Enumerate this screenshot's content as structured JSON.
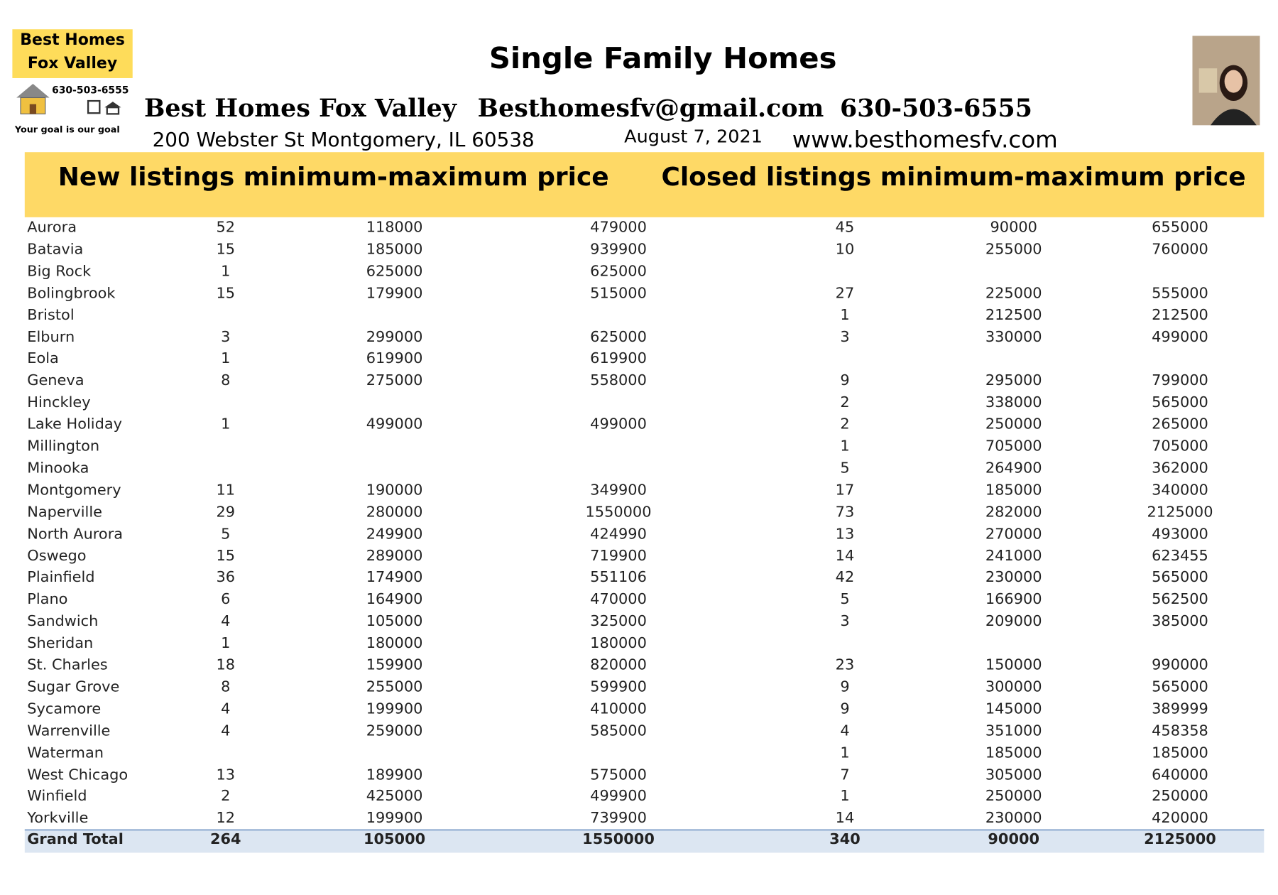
{
  "logo": {
    "line1": "Best Homes",
    "line2": "Fox Valley",
    "phone": "630-503-6555",
    "tagline": "Your goal is our goal"
  },
  "header": {
    "title": "Single Family Homes",
    "brand": "Best Homes Fox Valley",
    "email": "Besthomesfv@gmail.com",
    "phone": "630-503-6555",
    "address": "200 Webster St Montgomery, IL 60538",
    "date": "August 7, 2021",
    "website": "www.besthomesfv.com"
  },
  "table": {
    "headers": [
      "New listings minimum-maximum price",
      "Closed listings minimum-maximum price"
    ],
    "rows": [
      [
        "Aurora",
        52,
        118000,
        479000,
        45,
        90000,
        655000
      ],
      [
        "Batavia",
        15,
        185000,
        939900,
        10,
        255000,
        760000
      ],
      [
        "Big Rock",
        1,
        625000,
        625000,
        null,
        null,
        null
      ],
      [
        "Bolingbrook",
        15,
        179900,
        515000,
        27,
        225000,
        555000
      ],
      [
        "Bristol",
        null,
        null,
        null,
        1,
        212500,
        212500
      ],
      [
        "Elburn",
        3,
        299000,
        625000,
        3,
        330000,
        499000
      ],
      [
        "Eola",
        1,
        619900,
        619900,
        null,
        null,
        null
      ],
      [
        "Geneva",
        8,
        275000,
        558000,
        9,
        295000,
        799000
      ],
      [
        "Hinckley",
        null,
        null,
        null,
        2,
        338000,
        565000
      ],
      [
        "Lake Holiday",
        1,
        499000,
        499000,
        2,
        250000,
        265000
      ],
      [
        "Millington",
        null,
        null,
        null,
        1,
        705000,
        705000
      ],
      [
        "Minooka",
        null,
        null,
        null,
        5,
        264900,
        362000
      ],
      [
        "Montgomery",
        11,
        190000,
        349900,
        17,
        185000,
        340000
      ],
      [
        "Naperville",
        29,
        280000,
        1550000,
        73,
        282000,
        2125000
      ],
      [
        "North Aurora",
        5,
        249900,
        424990,
        13,
        270000,
        493000
      ],
      [
        "Oswego",
        15,
        289000,
        719900,
        14,
        241000,
        623455
      ],
      [
        "Plainfield",
        36,
        174900,
        551106,
        42,
        230000,
        565000
      ],
      [
        "Plano",
        6,
        164900,
        470000,
        5,
        166900,
        562500
      ],
      [
        "Sandwich",
        4,
        105000,
        325000,
        3,
        209000,
        385000
      ],
      [
        "Sheridan",
        1,
        180000,
        180000,
        null,
        null,
        null
      ],
      [
        "St. Charles",
        18,
        159900,
        820000,
        23,
        150000,
        990000
      ],
      [
        "Sugar Grove",
        8,
        255000,
        599900,
        9,
        300000,
        565000
      ],
      [
        "Sycamore",
        4,
        199900,
        410000,
        9,
        145000,
        389999
      ],
      [
        "Warrenville",
        4,
        259000,
        585000,
        4,
        351000,
        458358
      ],
      [
        "Waterman",
        null,
        null,
        null,
        1,
        185000,
        185000
      ],
      [
        "West Chicago",
        13,
        189900,
        575000,
        7,
        305000,
        640000
      ],
      [
        "Winfield",
        2,
        425000,
        499900,
        1,
        250000,
        250000
      ],
      [
        "Yorkville",
        12,
        199900,
        739900,
        14,
        230000,
        420000
      ]
    ],
    "total": [
      "Grand Total",
      264,
      105000,
      1550000,
      340,
      90000,
      2125000
    ]
  }
}
